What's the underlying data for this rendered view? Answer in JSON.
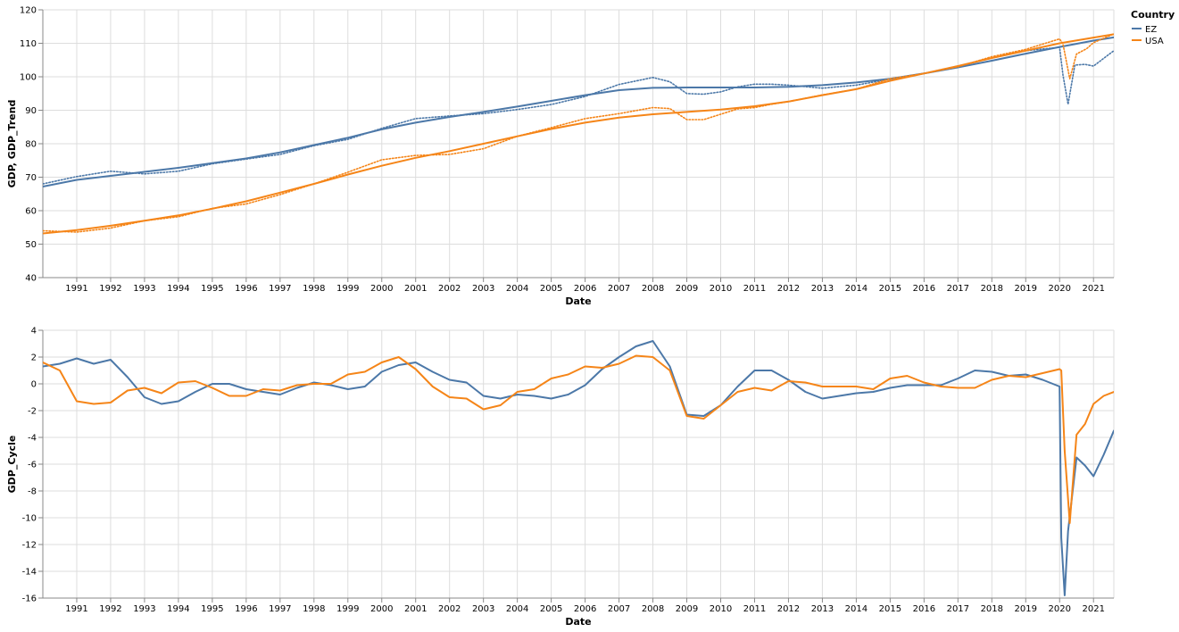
{
  "legend": {
    "title": "Country",
    "items": [
      {
        "label": "EZ",
        "color": "#4c78a8"
      },
      {
        "label": "USA",
        "color": "#f58518"
      }
    ]
  },
  "chart_data": [
    {
      "type": "line",
      "xlabel": "Date",
      "ylabel": "GDP, GDP_Trend",
      "xlim": [
        1990.0,
        2021.6
      ],
      "ylim": [
        40,
        120
      ],
      "y_ticks": [
        40,
        50,
        60,
        70,
        80,
        90,
        100,
        110,
        120
      ],
      "x_ticks": [
        "1991",
        "1992",
        "1993",
        "1994",
        "1995",
        "1996",
        "1997",
        "1998",
        "1999",
        "2000",
        "2001",
        "2002",
        "2003",
        "2004",
        "2005",
        "2006",
        "2007",
        "2008",
        "2009",
        "2010",
        "2011",
        "2012",
        "2013",
        "2014",
        "2015",
        "2016",
        "2017",
        "2018",
        "2019",
        "2020",
        "2021"
      ],
      "grid": true,
      "series": [
        {
          "name": "EZ",
          "style": "solid",
          "color": "#4c78a8",
          "x": [
            1990.0,
            1991,
            1992,
            1993,
            1994,
            1995,
            1996,
            1997,
            1998,
            1999,
            2000,
            2001,
            2002,
            2003,
            2004,
            2005,
            2006,
            2007,
            2008,
            2009,
            2010,
            2011,
            2012,
            2013,
            2014,
            2015,
            2016,
            2017,
            2018,
            2019,
            2020,
            2021,
            2021.6
          ],
          "y": [
            67.2,
            69.2,
            70.4,
            71.6,
            72.8,
            74.2,
            75.6,
            77.4,
            79.6,
            81.8,
            84.3,
            86.3,
            88.0,
            89.5,
            91.1,
            92.8,
            94.5,
            96.0,
            96.7,
            96.8,
            96.8,
            96.8,
            97.0,
            97.5,
            98.3,
            99.4,
            101.0,
            102.8,
            104.8,
            106.9,
            108.9,
            110.8,
            111.8
          ]
        },
        {
          "name": "EZ",
          "style": "dotted",
          "color": "#4c78a8",
          "x": [
            1990.0,
            1991,
            1992,
            1993,
            1994,
            1995,
            1996,
            1997,
            1998,
            1999,
            2000,
            2001,
            2002,
            2003,
            2004,
            2005,
            2006,
            2007,
            2008,
            2008.5,
            2009,
            2009.5,
            2010,
            2010.5,
            2011,
            2011.5,
            2012,
            2013,
            2014,
            2015,
            2016,
            2017,
            2018,
            2019,
            2020,
            2020.1,
            2020.25,
            2020.45,
            2020.75,
            2021,
            2021.6
          ],
          "y": [
            68.0,
            70.2,
            71.8,
            71.0,
            71.8,
            74.0,
            75.4,
            76.8,
            79.4,
            81.3,
            84.6,
            87.5,
            88.3,
            89.0,
            90.2,
            91.7,
            94.1,
            97.7,
            99.8,
            98.5,
            95.0,
            94.8,
            95.5,
            97.0,
            97.8,
            97.8,
            97.5,
            96.6,
            97.5,
            99.3,
            101.0,
            103.2,
            105.6,
            107.8,
            108.8,
            100.5,
            91.8,
            103.5,
            103.7,
            103.2,
            107.8
          ]
        },
        {
          "name": "USA",
          "style": "solid",
          "color": "#f58518",
          "x": [
            1990.0,
            1991,
            1992,
            1993,
            1994,
            1995,
            1996,
            1997,
            1998,
            1999,
            2000,
            2001,
            2002,
            2003,
            2004,
            2005,
            2006,
            2007,
            2008,
            2009,
            2010,
            2011,
            2012,
            2013,
            2014,
            2015,
            2016,
            2017,
            2018,
            2019,
            2020,
            2021,
            2021.6
          ],
          "y": [
            53.2,
            54.2,
            55.5,
            57.0,
            58.6,
            60.6,
            62.8,
            65.4,
            68.0,
            70.8,
            73.4,
            75.8,
            77.8,
            80.0,
            82.2,
            84.4,
            86.3,
            87.8,
            88.8,
            89.5,
            90.2,
            91.2,
            92.6,
            94.5,
            96.3,
            98.8,
            101.0,
            103.2,
            105.6,
            107.8,
            110.0,
            111.7,
            112.7
          ]
        },
        {
          "name": "USA",
          "style": "dotted",
          "color": "#f58518",
          "x": [
            1990.0,
            1991,
            1992,
            1993,
            1994,
            1995,
            1996,
            1997,
            1998,
            1999,
            2000,
            2001,
            2002,
            2003,
            2004,
            2005,
            2006,
            2007,
            2008,
            2008.5,
            2009,
            2009.5,
            2010,
            2010.5,
            2011,
            2011.5,
            2012,
            2013,
            2014,
            2015,
            2016,
            2017,
            2018,
            2019,
            2020,
            2020.1,
            2020.3,
            2020.5,
            2020.8,
            2021,
            2021.6
          ],
          "y": [
            54.0,
            53.6,
            54.8,
            57.0,
            58.2,
            60.7,
            62.0,
            64.8,
            68.0,
            71.5,
            75.2,
            76.5,
            76.8,
            78.5,
            82.2,
            84.8,
            87.5,
            89.0,
            90.8,
            90.5,
            87.2,
            87.2,
            88.8,
            90.4,
            90.8,
            91.8,
            92.6,
            94.6,
            96.3,
            99.4,
            101.0,
            103.0,
            106.0,
            108.2,
            111.3,
            109.8,
            99.4,
            106.8,
            108.4,
            110.2,
            112.8
          ]
        }
      ]
    },
    {
      "type": "line",
      "xlabel": "Date",
      "ylabel": "GDP_Cycle",
      "xlim": [
        1990.0,
        2021.6
      ],
      "ylim": [
        -16,
        4
      ],
      "y_ticks": [
        -16,
        -14,
        -12,
        -10,
        -8,
        -6,
        -4,
        -2,
        0,
        2,
        4
      ],
      "x_ticks": [
        "1991",
        "1992",
        "1993",
        "1994",
        "1995",
        "1996",
        "1997",
        "1998",
        "1999",
        "2000",
        "2001",
        "2002",
        "2003",
        "2004",
        "2005",
        "2006",
        "2007",
        "2008",
        "2009",
        "2010",
        "2011",
        "2012",
        "2013",
        "2014",
        "2015",
        "2016",
        "2017",
        "2018",
        "2019",
        "2020",
        "2021"
      ],
      "grid": true,
      "series": [
        {
          "name": "EZ",
          "color": "#4c78a8",
          "x": [
            1990.0,
            1990.5,
            1991.0,
            1991.5,
            1992.0,
            1992.5,
            1993.0,
            1993.5,
            1994.0,
            1994.5,
            1995.0,
            1995.5,
            1996.0,
            1996.5,
            1997.0,
            1997.5,
            1998.0,
            1998.5,
            1999.0,
            1999.5,
            2000.0,
            2000.5,
            2001.0,
            2001.5,
            2002.0,
            2002.5,
            2003.0,
            2003.5,
            2004.0,
            2004.5,
            2005.0,
            2005.5,
            2006.0,
            2006.5,
            2007.0,
            2007.5,
            2008.0,
            2008.5,
            2009.0,
            2009.5,
            2010.0,
            2010.5,
            2011.0,
            2011.5,
            2012.0,
            2012.5,
            2013.0,
            2013.5,
            2014.0,
            2014.5,
            2015.0,
            2015.5,
            2016.0,
            2016.5,
            2017.0,
            2017.5,
            2018.0,
            2018.5,
            2019.0,
            2019.5,
            2020.0,
            2020.05,
            2020.15,
            2020.25,
            2020.5,
            2020.75,
            2021.0,
            2021.3,
            2021.6
          ],
          "y": [
            1.3,
            1.5,
            1.9,
            1.5,
            1.8,
            0.5,
            -1.0,
            -1.5,
            -1.3,
            -0.6,
            0.0,
            0.0,
            -0.4,
            -0.6,
            -0.8,
            -0.3,
            0.1,
            -0.1,
            -0.4,
            -0.2,
            0.9,
            1.4,
            1.6,
            0.9,
            0.3,
            0.1,
            -0.9,
            -1.1,
            -0.8,
            -0.9,
            -1.1,
            -0.8,
            -0.1,
            1.1,
            2.0,
            2.8,
            3.2,
            1.3,
            -2.3,
            -2.4,
            -1.6,
            -0.2,
            1.0,
            1.0,
            0.3,
            -0.6,
            -1.1,
            -0.9,
            -0.7,
            -0.6,
            -0.3,
            -0.1,
            -0.1,
            -0.1,
            0.4,
            1.0,
            0.9,
            0.6,
            0.7,
            0.3,
            -0.2,
            -11.5,
            -15.8,
            -11.0,
            -5.5,
            -6.1,
            -6.9,
            -5.3,
            -3.5
          ]
        },
        {
          "name": "USA",
          "color": "#f58518",
          "x": [
            1990.0,
            1990.5,
            1991.0,
            1991.5,
            1992.0,
            1992.5,
            1993.0,
            1993.5,
            1994.0,
            1994.5,
            1995.0,
            1995.5,
            1996.0,
            1996.5,
            1997.0,
            1997.5,
            1998.0,
            1998.5,
            1999.0,
            1999.5,
            2000.0,
            2000.5,
            2001.0,
            2001.5,
            2002.0,
            2002.5,
            2003.0,
            2003.5,
            2004.0,
            2004.5,
            2005.0,
            2005.5,
            2006.0,
            2006.5,
            2007.0,
            2007.5,
            2008.0,
            2008.5,
            2009.0,
            2009.5,
            2010.0,
            2010.5,
            2011.0,
            2011.5,
            2012.0,
            2012.5,
            2013.0,
            2013.5,
            2014.0,
            2014.5,
            2015.0,
            2015.5,
            2016.0,
            2016.5,
            2017.0,
            2017.5,
            2018.0,
            2018.5,
            2019.0,
            2019.5,
            2020.0,
            2020.05,
            2020.15,
            2020.3,
            2020.5,
            2020.75,
            2021.0,
            2021.3,
            2021.6
          ],
          "y": [
            1.6,
            1.0,
            -1.3,
            -1.5,
            -1.4,
            -0.5,
            -0.3,
            -0.7,
            0.1,
            0.2,
            -0.3,
            -0.9,
            -0.9,
            -0.4,
            -0.5,
            -0.1,
            0.0,
            0.0,
            0.7,
            0.9,
            1.6,
            2.0,
            1.1,
            -0.2,
            -1.0,
            -1.1,
            -1.9,
            -1.6,
            -0.6,
            -0.4,
            0.4,
            0.7,
            1.3,
            1.2,
            1.5,
            2.1,
            2.0,
            1.0,
            -2.4,
            -2.6,
            -1.6,
            -0.6,
            -0.3,
            -0.5,
            0.2,
            0.1,
            -0.2,
            -0.2,
            -0.2,
            -0.4,
            0.4,
            0.6,
            0.1,
            -0.2,
            -0.3,
            -0.3,
            0.3,
            0.6,
            0.5,
            0.8,
            1.1,
            1.0,
            -5.0,
            -10.4,
            -3.8,
            -3.0,
            -1.5,
            -0.9,
            -0.6
          ]
        }
      ]
    }
  ]
}
